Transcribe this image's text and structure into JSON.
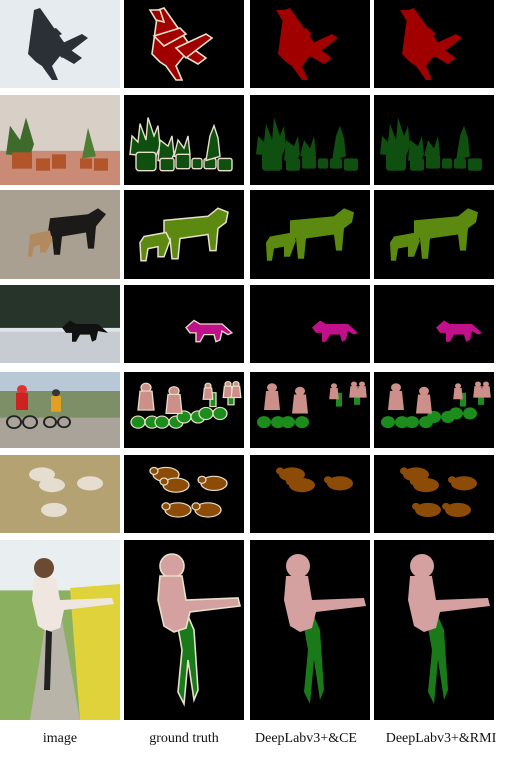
{
  "columns": [
    {
      "id": "image",
      "label": "image"
    },
    {
      "id": "ground-truth",
      "label": "ground truth"
    },
    {
      "id": "deeplab-ce",
      "label": "DeepLabv3+&CE"
    },
    {
      "id": "deeplab-rmi",
      "label": "DeepLabv3+&RMI"
    }
  ],
  "rows": [
    {
      "id": "aeroplane",
      "mask_color": "#a00000",
      "photo_bg": "#e6ebf0"
    },
    {
      "id": "potted-plants",
      "mask_color": "#0f4f10",
      "photo_bg": "#d8cfc7"
    },
    {
      "id": "cows",
      "mask_color": "#5c8a10",
      "photo_bg": "#a9a091"
    },
    {
      "id": "horse",
      "mask_color": "#c0108a",
      "photo_bg": "#4f5b55"
    },
    {
      "id": "cyclists",
      "mask_color_person": "#cc8f8a",
      "mask_color_bike": "#1c8c1c",
      "photo_bg": "#7d8f67"
    },
    {
      "id": "sheep",
      "mask_color": "#8c4c08",
      "photo_bg": "#b4a273"
    },
    {
      "id": "girl-bicycle",
      "mask_color_person": "#d4a0a0",
      "mask_color_bike": "#1a7a1a",
      "photo_bg": "#8ab060"
    }
  ],
  "outline_color": "#e8e0c8"
}
